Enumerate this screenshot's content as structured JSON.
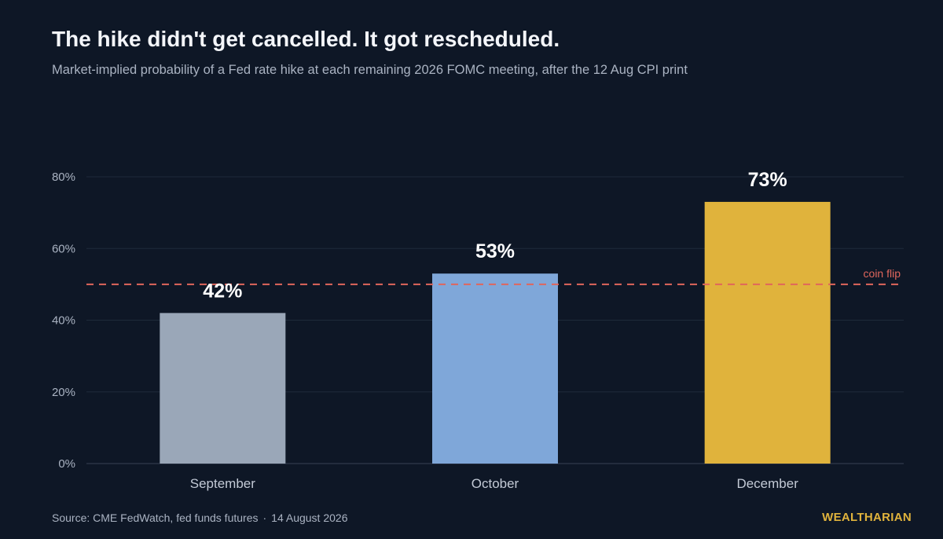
{
  "header": {
    "title": "The hike didn't get cancelled. It got rescheduled.",
    "subtitle": "Market-implied probability of a Fed rate hike at each remaining 2026 FOMC meeting, after the 12 Aug CPI print"
  },
  "chart_data": {
    "type": "bar",
    "categories": [
      "September",
      "October",
      "December"
    ],
    "values": [
      42,
      53,
      73
    ],
    "value_labels": [
      "42%",
      "53%",
      "73%"
    ],
    "ylim": [
      0,
      80
    ],
    "yticks": [
      0,
      20,
      40,
      60,
      80
    ],
    "ytick_labels": [
      "0%",
      "20%",
      "40%",
      "60%",
      "80%"
    ],
    "grid": true,
    "bar_colors": [
      "#9aa7b8",
      "#7fa7d9",
      "#e0b33c"
    ],
    "reference_line": {
      "value": 50,
      "label": "coin flip",
      "color": "#e0665c",
      "style": "dashed"
    }
  },
  "footer": {
    "source": "Source: CME FedWatch, fed funds futures",
    "separator": "·",
    "date": "14 August 2026",
    "brand": "WEALTHARIAN",
    "brand_color": "#e0b33c"
  }
}
